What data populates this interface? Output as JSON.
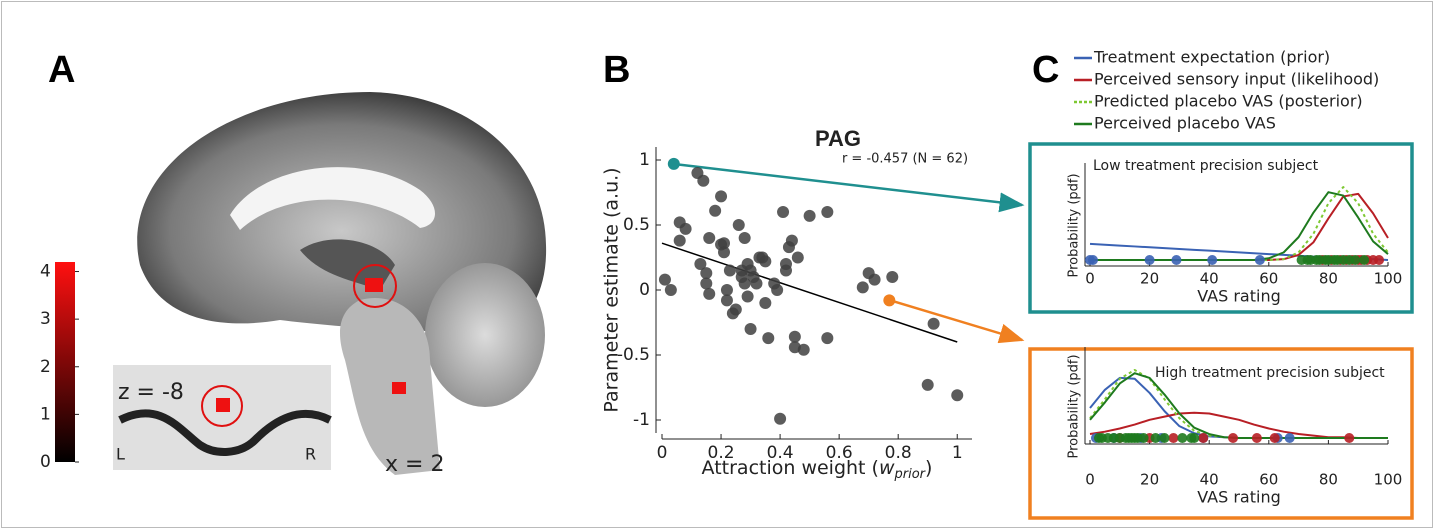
{
  "panel_a": {
    "label": "A",
    "slice_label": "z = -8",
    "left": "L",
    "right": "R",
    "x_label": "x = 2",
    "colorbar": {
      "lim": [
        0,
        4.2
      ],
      "ticks": [
        0,
        1,
        2,
        3,
        4
      ]
    }
  },
  "chart_data": [
    {
      "type": "scatter",
      "panel_label": "B",
      "title": "PAG",
      "annotation": "r = -0.457 (N = 62)",
      "y_label": "Parameter estimate (a.u.)",
      "x_label": {
        "text": "Attraction weight (",
        "italic": "w",
        "subscript": "prior",
        "close": ")"
      },
      "xlim": [
        0,
        1.05
      ],
      "ylim": [
        -1.1,
        1.1
      ],
      "xticks": [
        0,
        0.2,
        0.4,
        0.6,
        0.8,
        1
      ],
      "yticks": [
        -1,
        -0.5,
        0,
        0.5,
        1
      ],
      "series": [
        {
          "color": "#404040",
          "x": [
            0.01,
            0.03,
            0.06,
            0.06,
            0.08,
            0.12,
            0.14,
            0.13,
            0.15,
            0.15,
            0.16,
            0.16,
            0.18,
            0.2,
            0.2,
            0.21,
            0.21,
            0.22,
            0.22,
            0.23,
            0.24,
            0.25,
            0.26,
            0.27,
            0.27,
            0.28,
            0.28,
            0.29,
            0.29,
            0.3,
            0.3,
            0.31,
            0.32,
            0.33,
            0.34,
            0.35,
            0.35,
            0.36,
            0.38,
            0.39,
            0.4,
            0.41,
            0.42,
            0.42,
            0.43,
            0.44,
            0.45,
            0.45,
            0.46,
            0.48,
            0.5,
            0.56,
            0.56,
            0.68,
            0.7,
            0.72,
            0.78,
            0.9,
            0.92,
            1.0
          ],
          "y": [
            0.08,
            0.0,
            0.52,
            0.38,
            0.47,
            0.9,
            0.84,
            0.2,
            0.13,
            0.05,
            0.4,
            -0.03,
            0.61,
            0.72,
            0.35,
            0.36,
            0.29,
            0.0,
            -0.08,
            0.15,
            -0.18,
            -0.15,
            0.5,
            0.15,
            0.1,
            0.4,
            0.05,
            0.2,
            -0.05,
            0.15,
            -0.3,
            0.1,
            0.05,
            0.25,
            0.25,
            0.22,
            -0.1,
            -0.37,
            0.05,
            0.0,
            -0.99,
            0.6,
            0.15,
            0.2,
            0.33,
            0.38,
            -0.36,
            -0.44,
            0.25,
            -0.46,
            0.57,
            0.6,
            -0.37,
            0.02,
            0.13,
            0.08,
            0.1,
            -0.73,
            -0.26,
            -0.81
          ]
        },
        {
          "color": "#1f8f8f",
          "x": [
            0.04
          ],
          "y": [
            0.97
          ]
        },
        {
          "color": "#f08020",
          "x": [
            0.77
          ],
          "y": [
            -0.08
          ]
        }
      ],
      "fit": {
        "color": "#000000",
        "x": [
          0,
          1
        ],
        "y": [
          0.36,
          -0.4
        ]
      }
    },
    {
      "type": "line",
      "panel_label": "C",
      "frame_color": "#1f8f8f",
      "annotation": "Low treatment precision subject",
      "y_label": "Probability (pdf)",
      "x_label": "VAS rating",
      "legend": true,
      "xlim": [
        0,
        100
      ],
      "ylim": [
        0,
        1.05
      ],
      "xticks": [
        0,
        20,
        40,
        60,
        80,
        100
      ],
      "x": [
        0,
        5,
        10,
        15,
        20,
        25,
        30,
        35,
        40,
        45,
        50,
        55,
        60,
        65,
        70,
        75,
        80,
        85,
        90,
        95,
        100
      ],
      "series": [
        {
          "name": "Treatment expectation (prior)",
          "color": "#3a62b4",
          "dash": "solid",
          "values": [
            0.19,
            0.18,
            0.17,
            0.16,
            0.15,
            0.14,
            0.13,
            0.12,
            0.11,
            0.1,
            0.09,
            0.08,
            0.07,
            0.06,
            0.05,
            0.04,
            0.03,
            0.02,
            0.01,
            0.01,
            0
          ]
        },
        {
          "name": "Perceived sensory input (likelihood)",
          "color": "#b81f25",
          "dash": "solid",
          "values": [
            0,
            0,
            0,
            0,
            0,
            0,
            0,
            0,
            0,
            0,
            0,
            0,
            0,
            0.01,
            0.06,
            0.21,
            0.49,
            0.75,
            0.78,
            0.55,
            0.26
          ]
        },
        {
          "name": "Predicted placebo VAS (posterior)",
          "color": "#7ec832",
          "dash": "dotted",
          "values": [
            0,
            0,
            0,
            0,
            0,
            0,
            0,
            0,
            0,
            0,
            0,
            0,
            0,
            0.01,
            0.09,
            0.31,
            0.67,
            0.86,
            0.67,
            0.31,
            0.09
          ]
        },
        {
          "name": "Perceived placebo VAS",
          "color": "#1e7a1e",
          "dash": "solid",
          "values": [
            0,
            0,
            0,
            0,
            0,
            0,
            0,
            0,
            0,
            0,
            0,
            0,
            0.02,
            0.09,
            0.27,
            0.56,
            0.8,
            0.76,
            0.5,
            0.22,
            0.07
          ]
        }
      ],
      "dots": [
        {
          "color": "#3a62b4",
          "x": [
            0,
            1,
            20,
            29,
            41,
            57
          ]
        },
        {
          "color": "#b81f25",
          "x": [
            78,
            81,
            84,
            86,
            88,
            90,
            91,
            93,
            95,
            97
          ]
        },
        {
          "color": "#1e7a1e",
          "x": [
            71,
            73,
            74,
            76,
            77,
            79,
            80,
            82,
            83,
            85,
            87,
            89,
            92
          ]
        }
      ]
    },
    {
      "type": "line",
      "frame_color": "#f08020",
      "annotation": "High treatment precision subject",
      "y_label": "Probability (pdf)",
      "x_label": "VAS rating",
      "legend": false,
      "xlim": [
        0,
        100
      ],
      "ylim": [
        0,
        1.05
      ],
      "xticks": [
        0,
        20,
        40,
        60,
        80,
        100
      ],
      "x": [
        0,
        5,
        10,
        15,
        20,
        25,
        30,
        35,
        40,
        45,
        50,
        55,
        60,
        65,
        70,
        75,
        80,
        85,
        90,
        95,
        100
      ],
      "series": [
        {
          "color": "#3a62b4",
          "dash": "solid",
          "values": [
            0.38,
            0.61,
            0.76,
            0.75,
            0.57,
            0.34,
            0.15,
            0.06,
            0.02,
            0.01,
            0,
            0,
            0,
            0,
            0,
            0,
            0,
            0,
            0,
            0,
            0
          ]
        },
        {
          "color": "#b81f25",
          "dash": "solid",
          "values": [
            0.05,
            0.08,
            0.12,
            0.17,
            0.23,
            0.27,
            0.31,
            0.32,
            0.31,
            0.27,
            0.23,
            0.17,
            0.12,
            0.08,
            0.05,
            0.03,
            0.01,
            0.01,
            0,
            0,
            0
          ]
        },
        {
          "color": "#7ec832",
          "dash": "dotted",
          "values": [
            0.25,
            0.49,
            0.75,
            0.86,
            0.75,
            0.49,
            0.25,
            0.09,
            0.03,
            0.01,
            0,
            0,
            0,
            0,
            0,
            0,
            0,
            0,
            0,
            0,
            0
          ]
        },
        {
          "color": "#1e7a1e",
          "dash": "solid",
          "values": [
            0.23,
            0.45,
            0.69,
            0.82,
            0.76,
            0.55,
            0.31,
            0.13,
            0.05,
            0.01,
            0,
            0,
            0,
            0,
            0,
            0,
            0,
            0,
            0,
            0,
            0
          ]
        }
      ],
      "dots": [
        {
          "color": "#3a62b4",
          "x": [
            2,
            8,
            17,
            24,
            38,
            63,
            67
          ]
        },
        {
          "color": "#b81f25",
          "x": [
            10,
            20,
            28,
            38,
            48,
            56,
            62,
            87
          ]
        },
        {
          "color": "#1e7a1e",
          "x": [
            3,
            4,
            6,
            8,
            10,
            12,
            13,
            14,
            15,
            16,
            18,
            22,
            25,
            31,
            34,
            35
          ]
        }
      ]
    }
  ]
}
